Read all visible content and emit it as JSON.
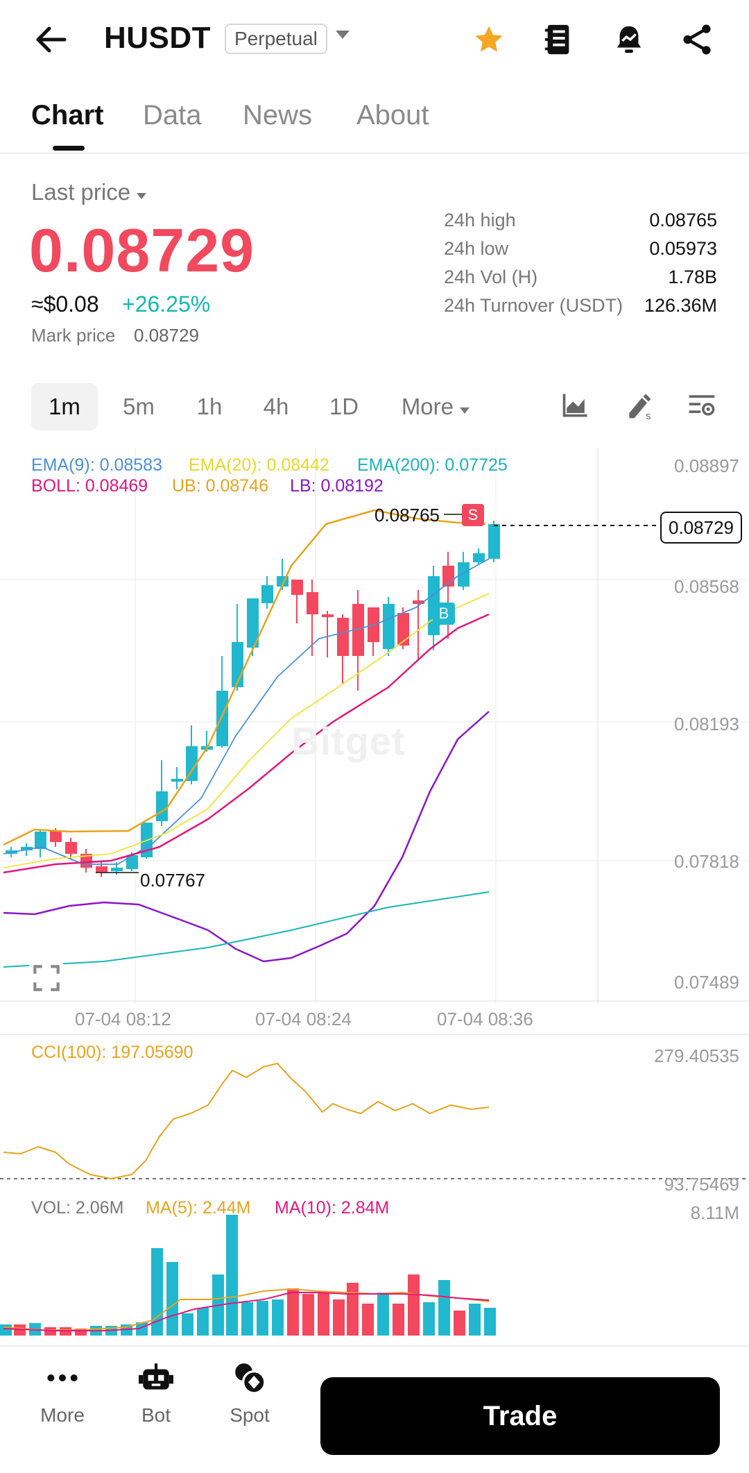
{
  "header": {
    "title": "HUSDT",
    "badge": "Perpetual"
  },
  "tabs": [
    {
      "label": "Chart",
      "active": true
    },
    {
      "label": "Data"
    },
    {
      "label": "News"
    },
    {
      "label": "About"
    }
  ],
  "price": {
    "last_price_label": "Last price",
    "last_price": "0.08729",
    "usd_value": "≈$0.08",
    "change_pct": "+26.25%",
    "mark_label": "Mark price",
    "mark_value": "0.08729"
  },
  "stats": [
    {
      "label": "24h high",
      "value": "0.08765"
    },
    {
      "label": "24h low",
      "value": "0.05973"
    },
    {
      "label": "24h Vol (H)",
      "value": "1.78B"
    },
    {
      "label": "24h Turnover (USDT)",
      "value": "126.36M"
    }
  ],
  "intervals": [
    {
      "label": "1m",
      "active": true
    },
    {
      "label": "5m"
    },
    {
      "label": "1h"
    },
    {
      "label": "4h"
    },
    {
      "label": "1D"
    },
    {
      "label": "More"
    }
  ],
  "indicators": {
    "ema9": "EMA(9): 0.08583",
    "ema20": "EMA(20): 0.08442",
    "ema200": "EMA(200): 0.07725",
    "boll": "BOLL: 0.08469",
    "ub": "UB: 0.08746",
    "lb": "LB: 0.08192",
    "cci": "CCI(100): 197.05690",
    "vol": "VOL: 2.06M",
    "ma5": "MA(5): 2.44M",
    "ma10": "MA(10): 2.84M"
  },
  "chart_data": {
    "type": "candlestick",
    "price_axis_ticks": [
      "0.08897",
      "0.08568",
      "0.08193",
      "0.07818",
      "0.07489"
    ],
    "time_axis_ticks": [
      "07-04 08:12",
      "07-04 08:24",
      "07-04 08:36"
    ],
    "current_price_tag": "0.08729",
    "high_marker": "0.08765",
    "low_marker": "0.07767",
    "trade_markers": [
      "S",
      "B"
    ],
    "cci_axis": [
      "279.40535",
      "93.75469"
    ],
    "vol_axis": "8.11M",
    "watermark": "Bitget",
    "colors": {
      "up": "#21b8cf",
      "down": "#f4485e",
      "ema9": "#4a90d9",
      "ema20": "#f1e33a",
      "ema200": "#19b5b8",
      "boll": "#e0177f",
      "ub": "#e8a31c",
      "lb": "#8a16c8"
    }
  },
  "bottom_nav": {
    "more": "More",
    "bot": "Bot",
    "spot": "Spot",
    "trade": "Trade"
  }
}
